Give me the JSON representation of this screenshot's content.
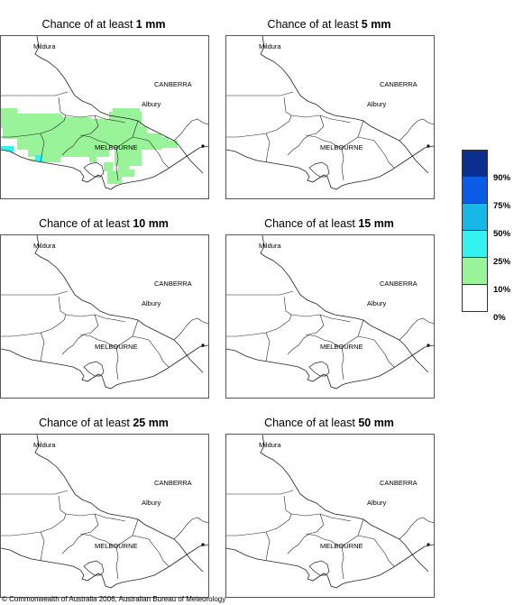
{
  "panels": [
    {
      "prefix": "Chance of at least ",
      "amount": "1 mm",
      "shaded": true
    },
    {
      "prefix": "Chance of at least ",
      "amount": "5 mm",
      "shaded": false
    },
    {
      "prefix": "Chance of at least ",
      "amount": "10 mm",
      "shaded": false
    },
    {
      "prefix": "Chance of at least ",
      "amount": "15 mm",
      "shaded": false
    },
    {
      "prefix": "Chance of at least ",
      "amount": "25 mm",
      "shaded": false
    },
    {
      "prefix": "Chance of at least ",
      "amount": "50 mm",
      "shaded": false
    }
  ],
  "places": {
    "mildura": "Mildura",
    "canberra": "CANBERRA",
    "albury": "Albury",
    "melbourne": "MELBOURNE"
  },
  "legend": {
    "colors": [
      "#0a2f8f",
      "#0a5ce6",
      "#17b7e8",
      "#33f2f0",
      "#99f499",
      "#ffffff"
    ],
    "ticks": [
      "90%",
      "75%",
      "50%",
      "25%",
      "10%",
      "0%"
    ]
  },
  "shading_color": "#99f499",
  "coast_shading_color": "#33f2f0",
  "copyright": "© Commonwealth of Australia 2006, Australian Bureau of Meteorology"
}
